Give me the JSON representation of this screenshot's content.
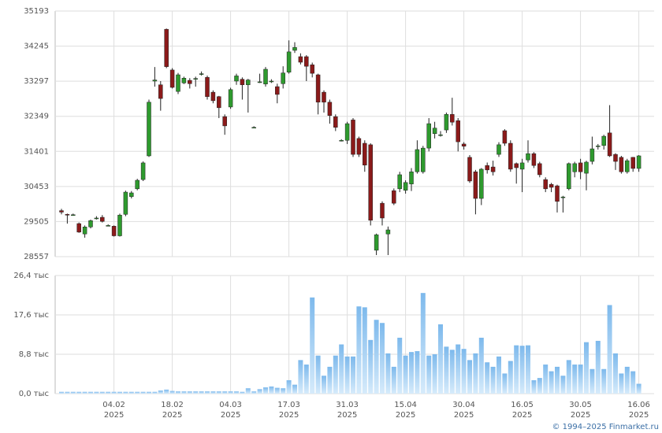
{
  "chart_data": [
    {
      "type": "candlestick",
      "open": [
        29800,
        29700,
        29690,
        29450,
        29170,
        29360,
        29600,
        29620,
        29400,
        29380,
        29120,
        29700,
        30180,
        30390,
        30640,
        31280,
        33300,
        33200,
        34700,
        33600,
        33020,
        33250,
        33320,
        33370,
        33500,
        33400,
        33000,
        32880,
        32340,
        32600,
        33300,
        33350,
        33200,
        32050,
        33280,
        33220,
        33300,
        33150,
        33230,
        33540,
        34130,
        33960,
        33960,
        33740,
        33470,
        33000,
        32730,
        32340,
        31700,
        31700,
        32250,
        31750,
        31620,
        31580,
        28730,
        30000,
        29170,
        30340,
        30390,
        30350,
        30520,
        30850,
        30850,
        31490,
        31880,
        31850,
        31980,
        32400,
        32230,
        31600,
        31240,
        30850,
        30130,
        31020,
        30980,
        31320,
        31960,
        31620,
        31070,
        30920,
        31170,
        31340,
        31070,
        30640,
        30510,
        30470,
        30170,
        30390,
        30850,
        31090,
        30810,
        31130,
        31550,
        31560,
        31900,
        31320,
        31240,
        30850,
        31240,
        30940
      ],
      "high": [
        29850,
        29720,
        29720,
        29480,
        29400,
        29560,
        29650,
        29680,
        29430,
        29400,
        29720,
        30340,
        30330,
        30660,
        31130,
        32800,
        33680,
        33300,
        34720,
        33650,
        33520,
        33420,
        33380,
        33420,
        33560,
        33450,
        33050,
        32900,
        32400,
        33120,
        33500,
        33400,
        33360,
        32080,
        33500,
        33680,
        33350,
        33230,
        33700,
        34400,
        34350,
        34050,
        34000,
        33800,
        33500,
        33050,
        32800,
        32400,
        31730,
        32200,
        32300,
        31800,
        31700,
        31620,
        29180,
        30050,
        29370,
        30400,
        30850,
        30620,
        30950,
        31700,
        31550,
        32300,
        32200,
        31950,
        32450,
        32850,
        32300,
        31650,
        31300,
        30900,
        30950,
        31100,
        31150,
        31650,
        32000,
        31700,
        31100,
        31200,
        31700,
        31380,
        31120,
        30700,
        30550,
        30500,
        30200,
        31100,
        31120,
        31200,
        31150,
        31800,
        31600,
        31850,
        32650,
        31350,
        31280,
        31200,
        31250,
        31300
      ],
      "low": [
        29700,
        29450,
        29660,
        29200,
        29070,
        29320,
        29560,
        29480,
        29380,
        29100,
        29100,
        29650,
        30130,
        30350,
        30600,
        31250,
        33150,
        32500,
        33650,
        33100,
        32950,
        33220,
        33100,
        33150,
        33450,
        32800,
        32700,
        32300,
        31850,
        32550,
        33200,
        32800,
        32450,
        32030,
        33250,
        33150,
        33250,
        32700,
        33100,
        33500,
        34060,
        33750,
        33300,
        33400,
        32400,
        32450,
        32150,
        31950,
        31670,
        31600,
        31250,
        31250,
        30850,
        29400,
        28600,
        29400,
        28600,
        29950,
        30300,
        30260,
        30330,
        30800,
        30800,
        31400,
        31750,
        31800,
        31900,
        32100,
        31400,
        31450,
        30550,
        29700,
        29950,
        30800,
        30750,
        31250,
        31550,
        30850,
        30530,
        30300,
        31100,
        30950,
        30700,
        30300,
        30300,
        29750,
        29750,
        30350,
        30700,
        30650,
        30350,
        31050,
        31450,
        31450,
        31250,
        30900,
        30800,
        30800,
        30850,
        30850
      ],
      "close": [
        29760,
        29680,
        29690,
        29220,
        29360,
        29530,
        29600,
        29510,
        29400,
        29120,
        29680,
        30300,
        30280,
        30620,
        31090,
        32730,
        33330,
        32830,
        33690,
        33130,
        33470,
        33380,
        33230,
        33370,
        33500,
        32880,
        32770,
        32580,
        32090,
        33070,
        33440,
        33200,
        33330,
        32050,
        33280,
        33620,
        33300,
        32940,
        33520,
        34090,
        34210,
        33810,
        33700,
        33510,
        32730,
        32730,
        32370,
        32050,
        31700,
        32150,
        31320,
        31320,
        31030,
        29540,
        29150,
        29600,
        29280,
        30000,
        30770,
        30560,
        30850,
        31450,
        31490,
        32150,
        32030,
        31850,
        32400,
        32190,
        31660,
        31540,
        30600,
        30130,
        30920,
        30900,
        30850,
        31580,
        31620,
        30920,
        30960,
        31090,
        31340,
        31020,
        30770,
        30390,
        30430,
        30050,
        30170,
        31070,
        31070,
        30850,
        31110,
        31470,
        31550,
        31810,
        31280,
        31130,
        30850,
        31150,
        30940,
        31280
      ],
      "up_color": "#2e9a2e",
      "down_color": "#8b1a1a",
      "ylim": [
        28557,
        35193
      ],
      "yticks": [
        28557,
        29505,
        30453,
        31401,
        32349,
        33297,
        34245,
        35193
      ],
      "grid": true
    },
    {
      "type": "bar",
      "categories": [
        null,
        null,
        null,
        null,
        null,
        null,
        null,
        null,
        null,
        "04.02\n2025",
        null,
        null,
        null,
        null,
        null,
        null,
        null,
        null,
        null,
        "18.02\n2025",
        null,
        null,
        null,
        null,
        null,
        null,
        null,
        null,
        null,
        "04.03\n2025",
        null,
        null,
        null,
        null,
        null,
        null,
        null,
        null,
        null,
        "17.03\n2025",
        null,
        null,
        null,
        null,
        null,
        null,
        null,
        null,
        null,
        "31.03\n2025",
        null,
        null,
        null,
        null,
        null,
        null,
        null,
        null,
        null,
        "15.04\n2025",
        null,
        null,
        null,
        null,
        null,
        null,
        null,
        null,
        null,
        "30.04\n2025",
        null,
        null,
        null,
        null,
        null,
        null,
        null,
        null,
        null,
        "16.05\n2025",
        null,
        null,
        null,
        null,
        null,
        null,
        null,
        null,
        null,
        "30.05\n2025",
        null,
        null,
        null,
        null,
        null,
        null,
        null,
        null,
        null,
        "16.06\n2025"
      ],
      "values": [
        0.4,
        0.4,
        0.4,
        0.4,
        0.4,
        0.4,
        0.4,
        0.4,
        0.4,
        0.4,
        0.4,
        0.4,
        0.4,
        0.4,
        0.4,
        0.4,
        0.4,
        0.7,
        0.9,
        0.6,
        0.5,
        0.5,
        0.5,
        0.5,
        0.5,
        0.5,
        0.5,
        0.5,
        0.5,
        0.5,
        0.5,
        0.4,
        1.2,
        0.5,
        1.0,
        1.4,
        1.6,
        1.3,
        1.2,
        3.0,
        2.0,
        7.5,
        6.5,
        21.5,
        8.5,
        4.0,
        6.0,
        8.5,
        11.0,
        8.3,
        8.3,
        19.5,
        19.3,
        12.0,
        16.5,
        15.8,
        9.0,
        6.0,
        12.5,
        8.5,
        9.3,
        9.5,
        22.5,
        8.5,
        8.8,
        15.5,
        10.5,
        9.8,
        11.0,
        10.0,
        7.5,
        9.0,
        12.5,
        7.0,
        6.0,
        8.3,
        4.5,
        7.3,
        10.8,
        10.7,
        10.8,
        3.0,
        3.5,
        6.5,
        5.0,
        6.0,
        4.0,
        7.5,
        6.5,
        6.5,
        11.5,
        5.5,
        11.8,
        5.5,
        19.8,
        9.0,
        4.5,
        6.0,
        5.0,
        2.2
      ],
      "color": "#8fc4ee",
      "ylim": [
        0,
        26.4
      ],
      "yticks": [
        {
          "value": 0,
          "label": "0,0 тыс"
        },
        {
          "value": 8.8,
          "label": "8,8 тыс"
        },
        {
          "value": 17.6,
          "label": "17,6 тыс"
        },
        {
          "value": 26.4,
          "label": "26,4 тыс"
        }
      ],
      "grid": true
    }
  ],
  "credit": "© 1994–2025 Finmarket.ru"
}
